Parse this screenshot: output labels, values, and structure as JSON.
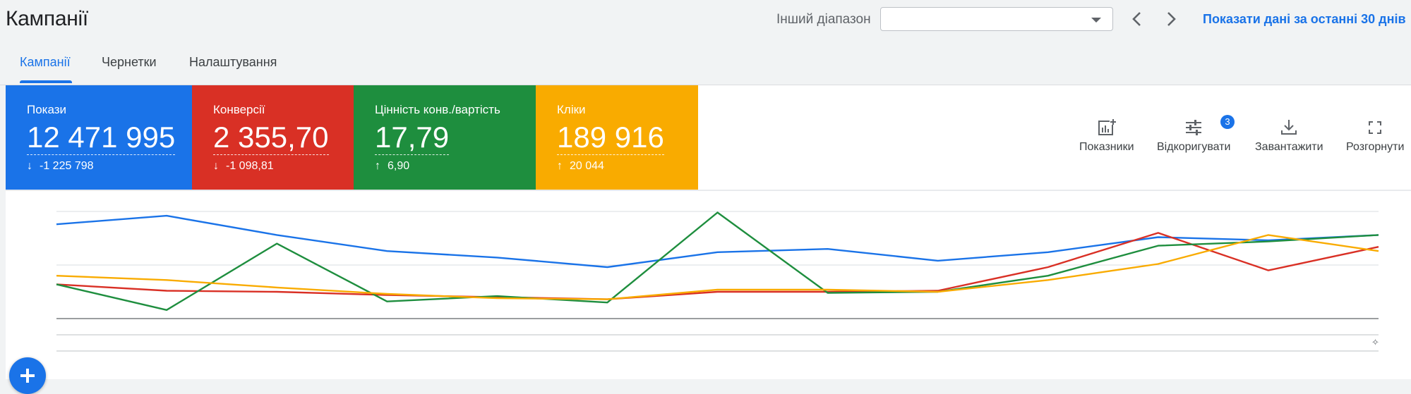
{
  "header": {
    "title": "Кампанії",
    "range_label": "Інший діапазон",
    "range_value": "",
    "show_last_link": "Показати дані за останні 30 днів"
  },
  "tabs": [
    {
      "label": "Кампанії",
      "active": true
    },
    {
      "label": "Чернетки",
      "active": false
    },
    {
      "label": "Налаштування",
      "active": false
    }
  ],
  "scorecards": {
    "impressions": {
      "label": "Покази",
      "value": "12 471 995",
      "delta": "-1 225 798",
      "direction": "down",
      "color": "#1a73e8"
    },
    "conversions": {
      "label": "Конверсії",
      "value": "2 355,70",
      "delta": "-1 098,81",
      "direction": "down",
      "color": "#d93025"
    },
    "value_ratio": {
      "label": "Цінність конв./вартість",
      "value": "17,79",
      "delta": "6,90",
      "direction": "up",
      "color": "#1e8e3e"
    },
    "clicks": {
      "label": "Кліки",
      "value": "189 916",
      "delta": "20 044",
      "direction": "up",
      "color": "#f9ab00"
    }
  },
  "toolbar": {
    "metrics_label": "Показники",
    "adjust_label": "Відкоригувати",
    "adjust_badge": "3",
    "download_label": "Завантажити",
    "expand_label": "Розгорнути"
  },
  "icons": {
    "prev": "chevron-left-icon",
    "next": "chevron-right-icon",
    "dropdown": "caret-down-icon",
    "metrics": "add-chart-icon",
    "adjust": "tune-icon",
    "download": "download-icon",
    "expand": "fullscreen-icon",
    "create": "plus-icon"
  },
  "chart_data": {
    "type": "line",
    "grid": true,
    "y_axis_labels_visible": false,
    "x_axis_labels_visible": false,
    "ylim": [
      0,
      100
    ],
    "series": [
      {
        "color": "#1a73e8",
        "values": [
          88,
          96,
          78,
          63,
          57,
          48,
          62,
          65,
          54,
          62,
          76,
          73,
          78
        ]
      },
      {
        "color": "#d93025",
        "values": [
          32,
          26,
          25,
          22,
          20,
          18,
          25,
          25,
          26,
          48,
          80,
          45,
          67
        ]
      },
      {
        "color": "#1e8e3e",
        "values": [
          32,
          8,
          70,
          16,
          21,
          15,
          99,
          24,
          25,
          40,
          68,
          72,
          78
        ]
      },
      {
        "color": "#f9ab00",
        "values": [
          40,
          36,
          29,
          23,
          19,
          18,
          27,
          27,
          25,
          36,
          51,
          78,
          63
        ]
      }
    ]
  }
}
